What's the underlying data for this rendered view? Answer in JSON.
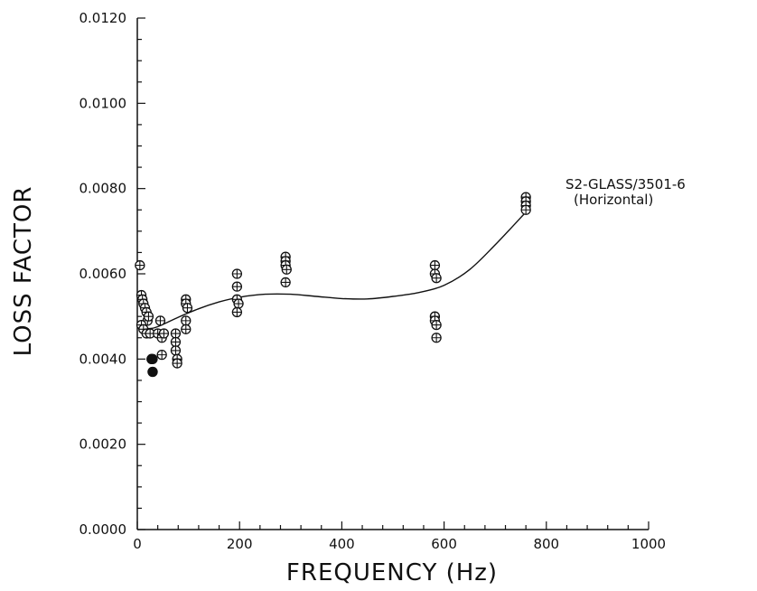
{
  "chart_data": {
    "type": "scatter",
    "xlabel": "FREQUENCY (Hz)",
    "ylabel": "LOSS FACTOR",
    "xlim": [
      0,
      1000
    ],
    "ylim": [
      0.0,
      0.012
    ],
    "x_ticks": [
      "0",
      "200",
      "400",
      "600",
      "800",
      "1000"
    ],
    "y_ticks": [
      "0.0000",
      "0.0020",
      "0.0040",
      "0.0060",
      "0.0080",
      "0.0100",
      "0.0120"
    ],
    "annotation": [
      "S2-GLASS/3501-6",
      "(Horizontal)"
    ],
    "series": [
      {
        "marker": "circle-plus",
        "points": [
          [
            5,
            0.0062
          ],
          [
            8,
            0.0055
          ],
          [
            10,
            0.0054
          ],
          [
            12,
            0.0053
          ],
          [
            15,
            0.0052
          ],
          [
            18,
            0.0051
          ],
          [
            20,
            0.0049
          ],
          [
            22,
            0.005
          ],
          [
            8,
            0.0048
          ],
          [
            12,
            0.0047
          ],
          [
            18,
            0.0046
          ],
          [
            25,
            0.0046
          ],
          [
            28,
            0.004
          ],
          [
            30,
            0.004
          ],
          [
            30,
            0.0037
          ],
          [
            40,
            0.0046
          ],
          [
            45,
            0.0049
          ],
          [
            48,
            0.0045
          ],
          [
            48,
            0.0041
          ],
          [
            52,
            0.0046
          ],
          [
            75,
            0.0046
          ],
          [
            75,
            0.0044
          ],
          [
            75,
            0.0042
          ],
          [
            78,
            0.004
          ],
          [
            78,
            0.0039
          ],
          [
            95,
            0.0054
          ],
          [
            95,
            0.0053
          ],
          [
            98,
            0.0052
          ],
          [
            95,
            0.0049
          ],
          [
            95,
            0.0047
          ],
          [
            195,
            0.006
          ],
          [
            195,
            0.0057
          ],
          [
            195,
            0.0054
          ],
          [
            198,
            0.0053
          ],
          [
            195,
            0.0051
          ],
          [
            290,
            0.0064
          ],
          [
            290,
            0.0063
          ],
          [
            290,
            0.0062
          ],
          [
            292,
            0.0061
          ],
          [
            290,
            0.0058
          ],
          [
            582,
            0.0062
          ],
          [
            582,
            0.006
          ],
          [
            585,
            0.0059
          ],
          [
            582,
            0.005
          ],
          [
            582,
            0.0049
          ],
          [
            585,
            0.0048
          ],
          [
            585,
            0.0045
          ],
          [
            760,
            0.0078
          ],
          [
            760,
            0.0077
          ],
          [
            760,
            0.0076
          ],
          [
            760,
            0.0075
          ]
        ]
      },
      {
        "marker": "filled-circle",
        "points": [
          [
            28,
            0.004
          ],
          [
            30,
            0.0037
          ]
        ]
      }
    ],
    "fit_curve": {
      "x": [
        0,
        20,
        40,
        80,
        120,
        160,
        200,
        250,
        300,
        350,
        400,
        450,
        500,
        550,
        600,
        650,
        700,
        760
      ],
      "y": [
        0.00482,
        0.00472,
        0.00476,
        0.00498,
        0.00518,
        0.00534,
        0.00545,
        0.00552,
        0.00552,
        0.00547,
        0.00542,
        0.00541,
        0.00547,
        0.00556,
        0.00573,
        0.0061,
        0.00668,
        0.00745
      ]
    }
  }
}
